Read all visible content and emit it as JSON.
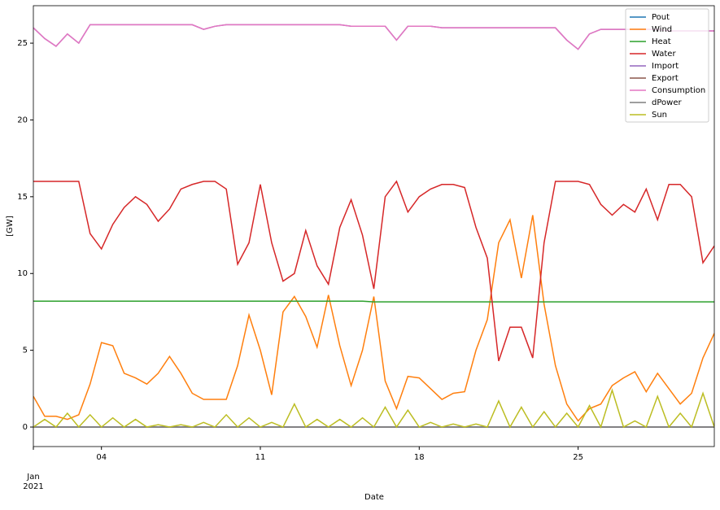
{
  "chart_data": {
    "type": "line",
    "x": [
      "2021-01-01 00:00",
      "2021-01-01 12:00",
      "2021-01-02 00:00",
      "2021-01-02 12:00",
      "2021-01-03 00:00",
      "2021-01-03 12:00",
      "2021-01-04 00:00",
      "2021-01-04 12:00",
      "2021-01-05 00:00",
      "2021-01-05 12:00",
      "2021-01-06 00:00",
      "2021-01-06 12:00",
      "2021-01-07 00:00",
      "2021-01-07 12:00",
      "2021-01-08 00:00",
      "2021-01-08 12:00",
      "2021-01-09 00:00",
      "2021-01-09 12:00",
      "2021-01-10 00:00",
      "2021-01-10 12:00",
      "2021-01-11 00:00",
      "2021-01-11 12:00",
      "2021-01-12 00:00",
      "2021-01-12 12:00",
      "2021-01-13 00:00",
      "2021-01-13 12:00",
      "2021-01-14 00:00",
      "2021-01-14 12:00",
      "2021-01-15 00:00",
      "2021-01-15 12:00",
      "2021-01-16 00:00",
      "2021-01-16 12:00",
      "2021-01-17 00:00",
      "2021-01-17 12:00",
      "2021-01-18 00:00",
      "2021-01-18 12:00",
      "2021-01-19 00:00",
      "2021-01-19 12:00",
      "2021-01-20 00:00",
      "2021-01-20 12:00",
      "2021-01-21 00:00",
      "2021-01-21 12:00",
      "2021-01-22 00:00",
      "2021-01-22 12:00",
      "2021-01-23 00:00",
      "2021-01-23 12:00",
      "2021-01-24 00:00",
      "2021-01-24 12:00",
      "2021-01-25 00:00",
      "2021-01-25 12:00",
      "2021-01-26 00:00",
      "2021-01-26 12:00",
      "2021-01-27 00:00",
      "2021-01-27 12:00",
      "2021-01-28 00:00",
      "2021-01-28 12:00",
      "2021-01-29 00:00",
      "2021-01-29 12:00",
      "2021-01-30 00:00",
      "2021-01-30 12:00",
      "2021-01-31 00:00"
    ],
    "series": [
      {
        "name": "Pout",
        "color": "#1f77b4",
        "values": [
          0,
          0,
          0,
          0,
          0,
          0,
          0,
          0,
          0,
          0,
          0,
          0,
          0,
          0,
          0,
          0,
          0,
          0,
          0,
          0,
          0,
          0,
          0,
          0,
          0,
          0,
          0,
          0,
          0,
          0,
          0,
          0,
          0,
          0,
          0,
          0,
          0,
          0,
          0,
          0,
          0,
          0,
          0,
          0,
          0,
          0,
          0,
          0,
          0,
          0,
          0,
          0,
          0,
          0,
          0,
          0,
          0,
          0,
          0,
          0,
          0
        ]
      },
      {
        "name": "Wind",
        "color": "#ff7f0e",
        "values": [
          2,
          0.7,
          0.7,
          0.5,
          0.8,
          2.8,
          5.5,
          5.3,
          3.5,
          3.2,
          2.8,
          3.5,
          4.6,
          3.5,
          2.2,
          1.8,
          1.8,
          1.8,
          4,
          7.3,
          5,
          2.1,
          7.5,
          8.5,
          7.2,
          5.2,
          8.6,
          5.3,
          2.7,
          5,
          8.5,
          3,
          1.2,
          3.3,
          3.2,
          2.5,
          1.8,
          2.2,
          2.3,
          5,
          7,
          12,
          13.5,
          9.7,
          13.8,
          8,
          4,
          1.5,
          0.4,
          1.2,
          1.5,
          2.7,
          3.2,
          3.6,
          2.3,
          3.5,
          2.5,
          1.5,
          2.2,
          4.5,
          6.1
        ]
      },
      {
        "name": "Heat",
        "color": "#2ca02c",
        "values": [
          8.2,
          8.2,
          8.2,
          8.2,
          8.2,
          8.2,
          8.2,
          8.2,
          8.2,
          8.2,
          8.2,
          8.2,
          8.2,
          8.2,
          8.2,
          8.2,
          8.2,
          8.2,
          8.2,
          8.2,
          8.2,
          8.2,
          8.2,
          8.2,
          8.2,
          8.2,
          8.2,
          8.2,
          8.2,
          8.2,
          8.15,
          8.15,
          8.15,
          8.15,
          8.15,
          8.15,
          8.15,
          8.15,
          8.15,
          8.15,
          8.15,
          8.15,
          8.15,
          8.15,
          8.15,
          8.15,
          8.15,
          8.15,
          8.15,
          8.15,
          8.15,
          8.15,
          8.15,
          8.15,
          8.15,
          8.15,
          8.15,
          8.15,
          8.15,
          8.15,
          8.15
        ]
      },
      {
        "name": "Water",
        "color": "#d62728",
        "values": [
          16,
          16,
          16,
          16,
          16,
          12.6,
          11.6,
          13.2,
          14.3,
          15,
          14.5,
          13.4,
          14.2,
          15.5,
          15.8,
          16,
          16,
          15.5,
          10.6,
          12,
          15.8,
          12,
          9.5,
          10,
          12.8,
          10.5,
          9.3,
          13,
          14.8,
          12.5,
          9,
          15,
          16,
          14,
          15,
          15.5,
          15.8,
          15.8,
          15.6,
          13,
          11,
          4.3,
          6.5,
          6.5,
          4.5,
          12,
          16,
          16,
          16,
          15.8,
          14.5,
          13.8,
          14.5,
          14,
          15.5,
          13.5,
          15.8,
          15.8,
          15,
          10.7,
          11.8
        ]
      },
      {
        "name": "Import",
        "color": "#9467bd",
        "values": [
          26,
          25.3,
          24.8,
          25.6,
          25,
          26.2,
          26.2,
          26.2,
          26.2,
          26.2,
          26.2,
          26.2,
          26.2,
          26.2,
          26.2,
          25.9,
          26.1,
          26.2,
          26.2,
          26.2,
          26.2,
          26.2,
          26.2,
          26.2,
          26.2,
          26.2,
          26.2,
          26.2,
          26.1,
          26.1,
          26.1,
          26.1,
          25.2,
          26.1,
          26.1,
          26.1,
          26,
          26,
          26,
          26,
          26,
          26,
          26,
          26,
          26,
          26,
          26,
          25.2,
          24.6,
          25.6,
          25.9,
          25.9,
          25.9,
          25.9,
          25.9,
          25.9,
          25.8,
          25.8,
          25.8,
          25.8,
          25.8
        ]
      },
      {
        "name": "Export",
        "color": "#8c564b",
        "values": [
          0,
          0,
          0,
          0,
          0,
          0,
          0,
          0,
          0,
          0,
          0,
          0,
          0,
          0,
          0,
          0,
          0,
          0,
          0,
          0,
          0,
          0,
          0,
          0,
          0,
          0,
          0,
          0,
          0,
          0,
          0,
          0,
          0,
          0,
          0,
          0,
          0,
          0,
          0,
          0,
          0,
          0,
          0,
          0,
          0,
          0,
          0,
          0,
          0,
          0,
          0,
          0,
          0,
          0,
          0,
          0,
          0,
          0,
          0,
          0,
          0
        ]
      },
      {
        "name": "Consumption",
        "color": "#e377c2",
        "values": [
          26,
          25.3,
          24.8,
          25.6,
          25,
          26.2,
          26.2,
          26.2,
          26.2,
          26.2,
          26.2,
          26.2,
          26.2,
          26.2,
          26.2,
          25.9,
          26.1,
          26.2,
          26.2,
          26.2,
          26.2,
          26.2,
          26.2,
          26.2,
          26.2,
          26.2,
          26.2,
          26.2,
          26.1,
          26.1,
          26.1,
          26.1,
          25.2,
          26.1,
          26.1,
          26.1,
          26,
          26,
          26,
          26,
          26,
          26,
          26,
          26,
          26,
          26,
          26,
          25.2,
          24.6,
          25.6,
          25.9,
          25.9,
          25.9,
          25.9,
          25.9,
          25.9,
          25.8,
          25.8,
          25.8,
          25.8,
          25.8
        ]
      },
      {
        "name": "dPower",
        "color": "#7f7f7f",
        "values": [
          0,
          0,
          0,
          0,
          0,
          0,
          0,
          0,
          0,
          0,
          0,
          0,
          0,
          0,
          0,
          0,
          0,
          0,
          0,
          0,
          0,
          0,
          0,
          0,
          0,
          0,
          0,
          0,
          0,
          0,
          0,
          0,
          0,
          0,
          0,
          0,
          0,
          0,
          0,
          0,
          0,
          0,
          0,
          0,
          0,
          0,
          0,
          0,
          0,
          0,
          0,
          0,
          0,
          0,
          0,
          0,
          0,
          0,
          0,
          0,
          0
        ]
      },
      {
        "name": "Sun",
        "color": "#bcbd22",
        "values": [
          0,
          0.5,
          0,
          0.9,
          0,
          0.8,
          0,
          0.6,
          0,
          0.5,
          0,
          0.15,
          0,
          0.15,
          0,
          0.3,
          0,
          0.8,
          0,
          0.6,
          0,
          0.3,
          0,
          1.5,
          0,
          0.5,
          0,
          0.5,
          0,
          0.6,
          0,
          1.3,
          0,
          1.1,
          0,
          0.3,
          0,
          0.2,
          0,
          0.2,
          0,
          1.7,
          0,
          1.3,
          0,
          1,
          0,
          0.9,
          0,
          1.4,
          0,
          2.4,
          0,
          0.4,
          0,
          2,
          0,
          0.9,
          0,
          2.2,
          0
        ]
      }
    ],
    "xlim": [
      "2021-01-01 00:00",
      "2021-01-31 00:00"
    ],
    "xticks": [
      {
        "value": "2021-01-01 00:00",
        "label": "Jan\n2021"
      },
      {
        "value": "2021-01-04 00:00",
        "label": "04"
      },
      {
        "value": "2021-01-11 00:00",
        "label": "11"
      },
      {
        "value": "2021-01-18 00:00",
        "label": "18"
      },
      {
        "value": "2021-01-25 00:00",
        "label": "25"
      }
    ],
    "ylim": [
      -1.27,
      27.44
    ],
    "yticks": [
      0,
      5,
      10,
      15,
      20,
      25
    ],
    "xlabel": "Date",
    "ylabel": "[GW]",
    "legend": "upper right"
  }
}
